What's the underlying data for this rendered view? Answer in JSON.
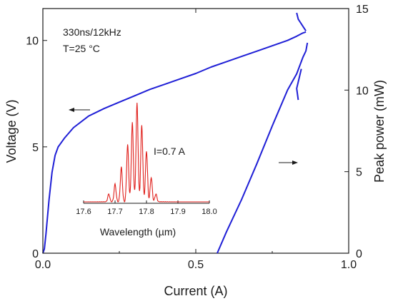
{
  "chart_data": {
    "type": "line",
    "xlabel": "Current (A)",
    "ylabel_left": "Voltage (V)",
    "ylabel_right": "Peak power (mW)",
    "xlim": [
      0.0,
      1.0
    ],
    "ylim_left": [
      0,
      11.5
    ],
    "ylim_right": [
      0,
      15
    ],
    "x_ticks": [
      "0.0",
      "0.5",
      "1.0"
    ],
    "y_left_ticks": [
      "0",
      "5",
      "10"
    ],
    "y_right_ticks": [
      "0",
      "5",
      "10",
      "15"
    ],
    "annotations": {
      "conditions_line1": "330ns/12kHz",
      "conditions_line2": "T=25 °C"
    },
    "series": [
      {
        "axis": "left",
        "color": "#1f1fd6",
        "x": [
          0.0,
          0.005,
          0.01,
          0.02,
          0.03,
          0.04,
          0.05,
          0.07,
          0.1,
          0.15,
          0.2,
          0.25,
          0.3,
          0.35,
          0.4,
          0.45,
          0.5,
          0.55,
          0.6,
          0.65,
          0.7,
          0.75,
          0.8,
          0.83,
          0.85,
          0.86
        ],
        "y": [
          0.0,
          0.2,
          0.9,
          2.5,
          3.8,
          4.6,
          5.0,
          5.4,
          5.9,
          6.45,
          6.8,
          7.1,
          7.4,
          7.7,
          7.95,
          8.2,
          8.45,
          8.75,
          9.0,
          9.25,
          9.5,
          9.75,
          10.0,
          10.2,
          10.35,
          10.4
        ]
      },
      {
        "axis": "right",
        "color": "#1f1fd6",
        "x": [
          0.57,
          0.6,
          0.65,
          0.7,
          0.75,
          0.8,
          0.83,
          0.85,
          0.86,
          0.865
        ],
        "y": [
          0.0,
          1.3,
          3.3,
          5.5,
          7.8,
          10.0,
          11.0,
          12.0,
          12.4,
          12.9
        ]
      }
    ],
    "inset": {
      "type": "line",
      "xlabel": "Wavelength (µm)",
      "x_ticks": [
        "17.6",
        "17.7",
        "17.8",
        "17.9",
        "18.0"
      ],
      "xlim": [
        17.6,
        18.0
      ],
      "annotation": "I=0.7 A",
      "color": "#e0201c",
      "peaks": {
        "x": [
          17.68,
          17.7,
          17.72,
          17.74,
          17.755,
          17.77,
          17.785,
          17.8,
          17.815,
          17.83
        ],
        "y": [
          0.08,
          0.18,
          0.35,
          0.58,
          0.8,
          1.0,
          0.78,
          0.52,
          0.25,
          0.08
        ]
      }
    }
  }
}
